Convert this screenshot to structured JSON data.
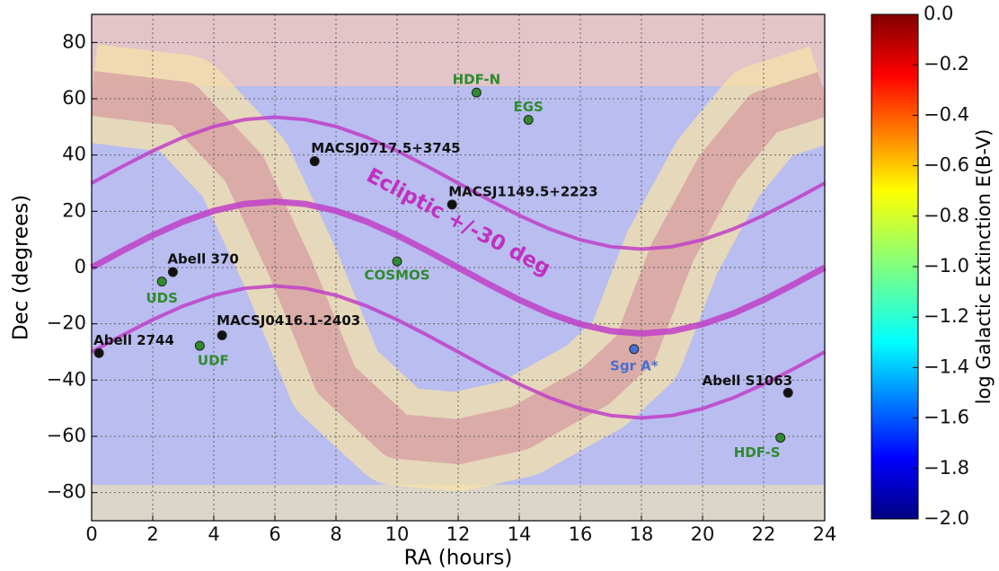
{
  "chart_data": {
    "type": "scatter",
    "xlabel": "RA (hours)",
    "ylabel": "Dec (degrees)",
    "xlim": [
      0,
      24
    ],
    "ylim": [
      -90,
      90
    ],
    "xticks": [
      0,
      2,
      4,
      6,
      8,
      10,
      12,
      14,
      16,
      18,
      20,
      22,
      24
    ],
    "yticks": [
      {
        "value": -80,
        "label": "−80"
      },
      {
        "value": -60,
        "label": "−60"
      },
      {
        "value": -40,
        "label": "−40"
      },
      {
        "value": -20,
        "label": "−20"
      },
      0,
      20,
      40,
      60,
      80
    ],
    "grid": true,
    "annotation": {
      "text": "Ecliptic +/-30 deg",
      "color": "#c030c0"
    },
    "curves": {
      "x": [
        0,
        1,
        2,
        3,
        4,
        5,
        6,
        7,
        8,
        9,
        10,
        11,
        12,
        13,
        14,
        15,
        16,
        17,
        18,
        19,
        20,
        21,
        22,
        23,
        24
      ],
      "series": [
        {
          "color": "#c040c8",
          "values": [
            30,
            35.91,
            41.47,
            46.34,
            50.15,
            52.6,
            53.44,
            52.6,
            50.15,
            46.34,
            41.47,
            35.91,
            30,
            24.09,
            18.53,
            13.66,
            9.85,
            7.4,
            6.56,
            7.4,
            9.85,
            13.66,
            18.53,
            24.09,
            30
          ]
        },
        {
          "color": "#c040c8",
          "values": [
            0,
            5.91,
            11.47,
            16.34,
            20.15,
            22.6,
            23.44,
            22.6,
            20.15,
            16.34,
            11.47,
            5.91,
            0,
            -5.91,
            -11.47,
            -16.34,
            -20.15,
            -22.6,
            -23.44,
            -22.6,
            -20.15,
            -16.34,
            -11.47,
            -5.91,
            0
          ]
        },
        {
          "color": "#c040c8",
          "values": [
            -30,
            -24.09,
            -18.53,
            -13.66,
            -9.85,
            -7.4,
            -6.56,
            -7.4,
            -9.85,
            -13.66,
            -18.53,
            -24.09,
            -30,
            -35.91,
            -41.47,
            -46.34,
            -50.15,
            -52.6,
            -53.44,
            -52.6,
            -50.15,
            -46.34,
            -41.47,
            -35.91,
            -30
          ]
        }
      ]
    },
    "points": [
      {
        "label": "HDF-N",
        "ra": 12.6,
        "dec": 62.2,
        "color": "#2e8b2e",
        "label_color": "#2e8b2e"
      },
      {
        "label": "EGS",
        "ra": 14.3,
        "dec": 52.5,
        "color": "#2e8b2e",
        "label_color": "#2e8b2e"
      },
      {
        "label": "MACSJ0717.5+3745",
        "ra": 7.3,
        "dec": 37.8,
        "color": "#111111",
        "label_color": "#111111"
      },
      {
        "label": "MACSJ1149.5+2223",
        "ra": 11.8,
        "dec": 22.4,
        "color": "#111111",
        "label_color": "#111111"
      },
      {
        "label": "Abell 370",
        "ra": 2.66,
        "dec": -1.6,
        "color": "#111111",
        "label_color": "#111111"
      },
      {
        "label": "UDS",
        "ra": 2.3,
        "dec": -5,
        "color": "#2e8b2e",
        "label_color": "#2e8b2e"
      },
      {
        "label": "COSMOS",
        "ra": 10.0,
        "dec": 2.2,
        "color": "#2e8b2e",
        "label_color": "#2e8b2e"
      },
      {
        "label": "MACSJ0416.1-2403",
        "ra": 4.27,
        "dec": -24.1,
        "color": "#111111",
        "label_color": "#111111"
      },
      {
        "label": "Abell 2744",
        "ra": 0.24,
        "dec": -30.4,
        "color": "#111111",
        "label_color": "#111111"
      },
      {
        "label": "UDF",
        "ra": 3.54,
        "dec": -27.8,
        "color": "#2e8b2e",
        "label_color": "#2e8b2e"
      },
      {
        "label": "Sgr A*",
        "ra": 17.76,
        "dec": -29.0,
        "color": "#4a6fd0",
        "label_color": "#4a6fd0"
      },
      {
        "label": "Abell S1063",
        "ra": 22.8,
        "dec": -44.5,
        "color": "#111111",
        "label_color": "#111111"
      },
      {
        "label": "HDF-S",
        "ra": 22.55,
        "dec": -60.5,
        "color": "#2e8b2e",
        "label_color": "#2e8b2e"
      }
    ],
    "colorbar": {
      "label": "log Galactic Extinction E(B-V)",
      "lim": [
        -2,
        0
      ],
      "ticks": [
        {
          "value": 0,
          "label": "0.0"
        },
        {
          "value": -0.2,
          "label": "−0.2"
        },
        {
          "value": -0.4,
          "label": "−0.4"
        },
        {
          "value": -0.6,
          "label": "−0.6"
        },
        {
          "value": -0.8,
          "label": "−0.8"
        },
        {
          "value": -1.0,
          "label": "−1.0"
        },
        {
          "value": -1.2,
          "label": "−1.2"
        },
        {
          "value": -1.4,
          "label": "−1.4"
        },
        {
          "value": -1.6,
          "label": "−1.6"
        },
        {
          "value": -1.8,
          "label": "−1.8"
        },
        {
          "value": -2.0,
          "label": "−2.0"
        }
      ]
    }
  }
}
